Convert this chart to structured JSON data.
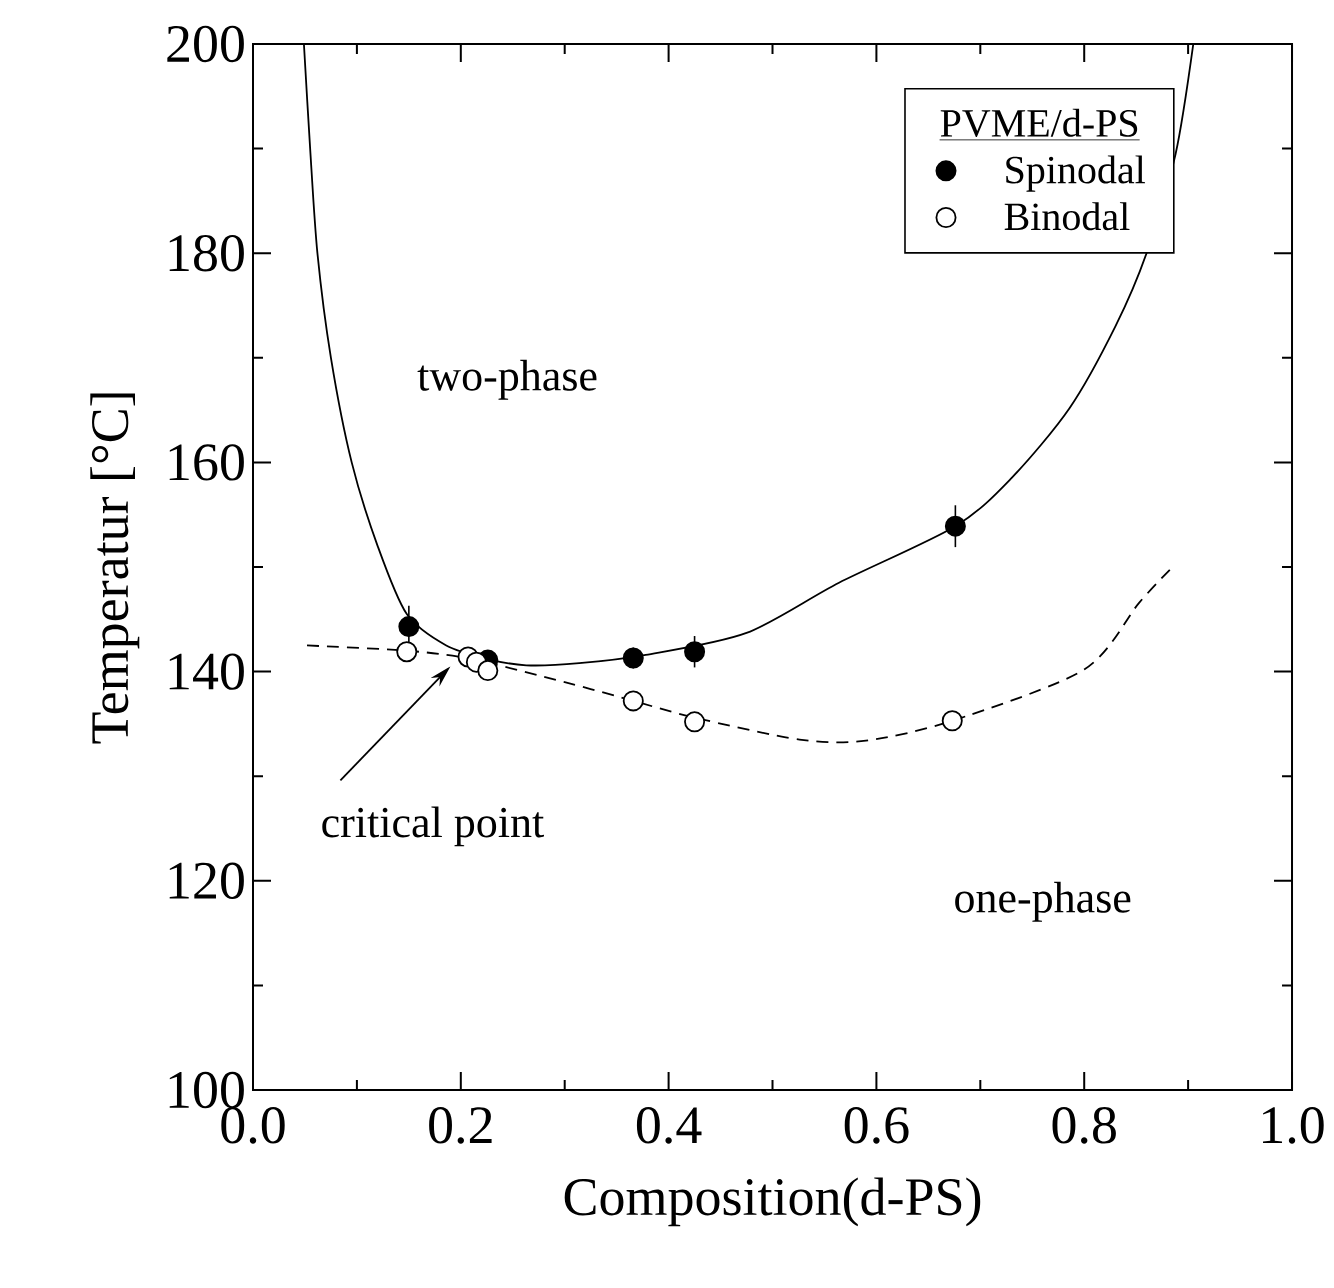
{
  "chart_data": {
    "type": "scatter",
    "xlabel": "Composition(d-PS)",
    "ylabel": "Temperatur  [°C]",
    "legend_title": "PVME/d-PS",
    "xlim": [
      0.0,
      1.0
    ],
    "ylim": [
      100,
      200
    ],
    "xticks": [
      {
        "value": 0.0,
        "label": "0.0"
      },
      {
        "value": 0.2,
        "label": "0.2"
      },
      {
        "value": 0.4,
        "label": "0.4"
      },
      {
        "value": 0.6,
        "label": "0.6"
      },
      {
        "value": 0.8,
        "label": "0.8"
      },
      {
        "value": 1.0,
        "label": "1.0"
      }
    ],
    "yticks": [
      100,
      120,
      140,
      160,
      180,
      200
    ],
    "legend": "top right",
    "grid": false,
    "marker": "circle",
    "series": [
      {
        "name": "Spinodal",
        "color": "#000000",
        "x": [
          0.15,
          0.226,
          0.366,
          0.425,
          0.676
        ],
        "values": [
          144.3,
          141.1,
          141.3,
          141.9,
          153.9
        ],
        "errors": [
          2,
          null,
          1,
          1.5,
          2
        ]
      },
      {
        "name": "Binodal",
        "color": "#ffffff",
        "x": [
          0.148,
          0.207,
          0.215,
          0.226,
          0.366,
          0.425,
          0.673
        ],
        "values": [
          141.9,
          141.4,
          140.9,
          140.1,
          137.2,
          135.2,
          135.3
        ]
      },
      {
        "type": "line",
        "line_style": "solid",
        "marker": "none",
        "color": "#000000",
        "x": [
          0.049,
          0.055,
          0.062,
          0.075,
          0.095,
          0.12,
          0.148,
          0.186,
          0.226,
          0.263,
          0.314,
          0.378,
          0.475,
          0.564,
          0.676,
          0.73,
          0.786,
          0.83,
          0.86,
          0.888,
          0.905
        ],
        "values": [
          200,
          190,
          180,
          170,
          160,
          152,
          145.5,
          142.5,
          141.2,
          140.6,
          140.8,
          141.6,
          143.7,
          148.5,
          153.9,
          158.5,
          165.2,
          173,
          180,
          189.5,
          200
        ]
      },
      {
        "type": "line",
        "line_style": "dashed",
        "marker": "none",
        "color": "#000000",
        "x": [
          0.052,
          0.148,
          0.21,
          0.3,
          0.366,
          0.425,
          0.526,
          0.59,
          0.673,
          0.8,
          0.853,
          0.885
        ],
        "values": [
          142.5,
          142.0,
          141.2,
          139.0,
          137.2,
          135.6,
          133.5,
          133.4,
          135.3,
          140.2,
          146.6,
          150
        ]
      }
    ],
    "annotations": [
      "two-phase",
      "one-phase",
      {
        "text": "critical point",
        "x": 0.19,
        "y": 140.5
      }
    ]
  }
}
